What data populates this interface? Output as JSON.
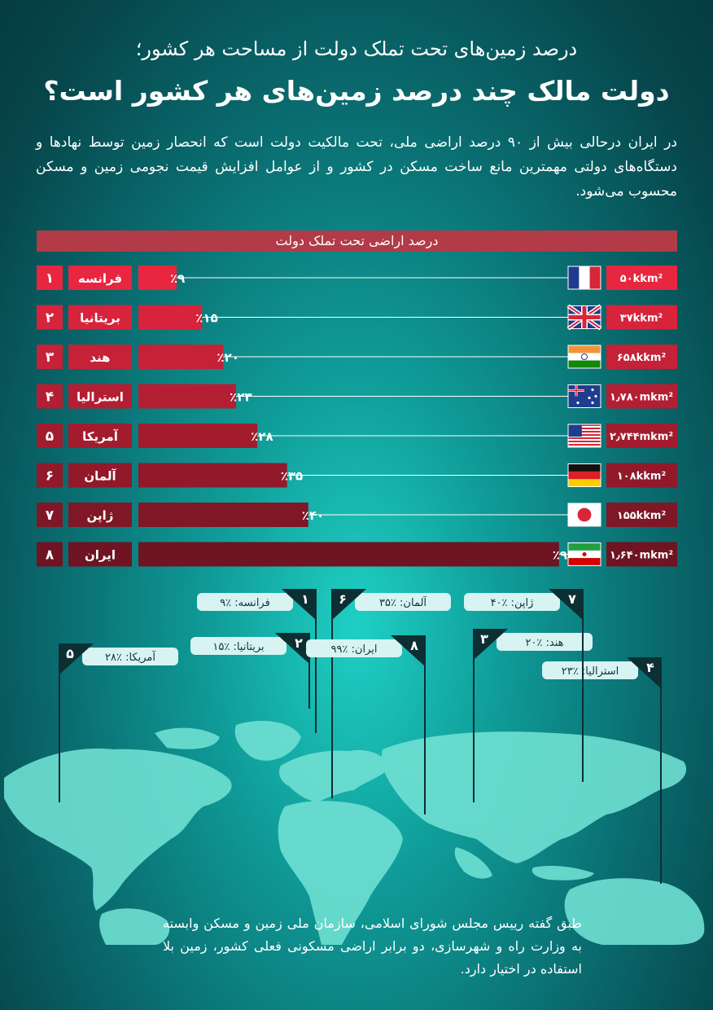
{
  "header": {
    "subtitle": "درصد زمین‌های تحت تملک دولت از مساحت هر کشور؛",
    "title": "دولت مالک چند درصد زمین‌های هر کشور است؟",
    "intro": "در ایران درحالی بیش از ۹۰ درصد اراضی ملی، تحت مالکیت دولت است که انحصار زمین توسط نهادها و دستگاه‌های دولتی مهمترین مانع ساخت مسکن در کشور و از عوامل افزایش قیمت نجومی زمین و مسکن محسوب می‌شود."
  },
  "chart_data": {
    "type": "bar",
    "title": "درصد اراضی تحت تملک دولت",
    "xlim": [
      0,
      100
    ],
    "categories": [
      "فرانسه",
      "بریتانیا",
      "هند",
      "استرالیا",
      "آمریکا",
      "آلمان",
      "ژاپن",
      "ایران"
    ],
    "ranks": [
      "۱",
      "۲",
      "۳",
      "۴",
      "۵",
      "۶",
      "۷",
      "۸"
    ],
    "values": [
      9,
      15,
      20,
      23,
      28,
      35,
      40,
      99
    ],
    "value_labels": [
      "٪۹",
      "٪۱۵",
      "٪۲۰",
      "٪۲۳",
      "٪۲۸",
      "٪۳۵",
      "٪۴۰",
      "٪۹۹"
    ],
    "areas": [
      "۵۰kkm²",
      "۳۷kkm²",
      "۶۵۸kkm²",
      "۱٫۷۸۰mkm²",
      "۲٫۷۴۴mkm²",
      "۱۰۸kkm²",
      "۱۵۵kkm²",
      "۱٫۶۴۰mkm²"
    ],
    "flags": [
      "france-flag",
      "uk-flag",
      "india-flag",
      "australia-flag",
      "usa-flag",
      "germany-flag",
      "japan-flag",
      "iran-flag"
    ]
  },
  "map_callouts": [
    {
      "rank": "۱",
      "label": "فرانسه: ٪۹"
    },
    {
      "rank": "۲",
      "label": "بریتانیا: ٪۱۵"
    },
    {
      "rank": "۳",
      "label": "هند: ٪۲۰"
    },
    {
      "rank": "۴",
      "label": "استرالیا: ٪۲۳"
    },
    {
      "rank": "۵",
      "label": "آمریکا: ٪۲۸"
    },
    {
      "rank": "۶",
      "label": "آلمان: ٪۳۵"
    },
    {
      "rank": "۷",
      "label": "ژاپن: ٪۴۰"
    },
    {
      "rank": "۸",
      "label": "ایران: ٪۹۹"
    }
  ],
  "footnote": "طبق گفته رییس مجلس شورای اسلامی، سازمان ملی زمین و مسکن وابسته به وزارت راه و شهرسازی، دو برابر اراضی مسکونی فعلی کشور، زمین بلا استفاده در اختیار دارد.",
  "colors": {
    "band": "#b33a47",
    "bar_start": "#e8263f",
    "bar_end": "#6e1422",
    "map": "#6fe0d3",
    "background": "#0a6d70"
  }
}
